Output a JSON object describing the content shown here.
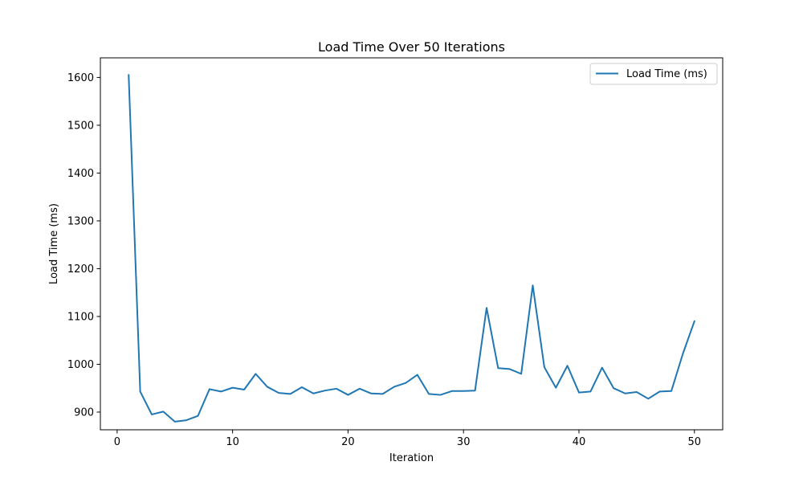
{
  "chart_data": {
    "type": "line",
    "title": "Load Time Over 50 Iterations",
    "xlabel": "Iteration",
    "ylabel": "Load Time (ms)",
    "xlim": [
      -1.45,
      52.45
    ],
    "ylim": [
      863,
      1641
    ],
    "xticks": [
      0,
      10,
      20,
      30,
      40,
      50
    ],
    "yticks": [
      900,
      1000,
      1100,
      1200,
      1300,
      1400,
      1500,
      1600
    ],
    "legend_position": "top-right",
    "grid": false,
    "series": [
      {
        "name": "Load Time (ms)",
        "color": "#1f77b4",
        "x": [
          1,
          2,
          3,
          4,
          5,
          6,
          7,
          8,
          9,
          10,
          11,
          12,
          13,
          14,
          15,
          16,
          17,
          18,
          19,
          20,
          21,
          22,
          23,
          24,
          25,
          26,
          27,
          28,
          29,
          30,
          31,
          32,
          33,
          34,
          35,
          36,
          37,
          38,
          39,
          40,
          41,
          42,
          43,
          44,
          45,
          46,
          47,
          48,
          49,
          50
        ],
        "values": [
          1605,
          943,
          895,
          901,
          880,
          883,
          892,
          948,
          943,
          951,
          947,
          980,
          953,
          940,
          938,
          952,
          939,
          945,
          949,
          936,
          949,
          939,
          938,
          953,
          961,
          978,
          938,
          936,
          944,
          944,
          945,
          1118,
          992,
          990,
          980,
          1165,
          994,
          951,
          997,
          941,
          943,
          993,
          950,
          939,
          942,
          928,
          943,
          944,
          1022,
          1090
        ]
      }
    ]
  }
}
